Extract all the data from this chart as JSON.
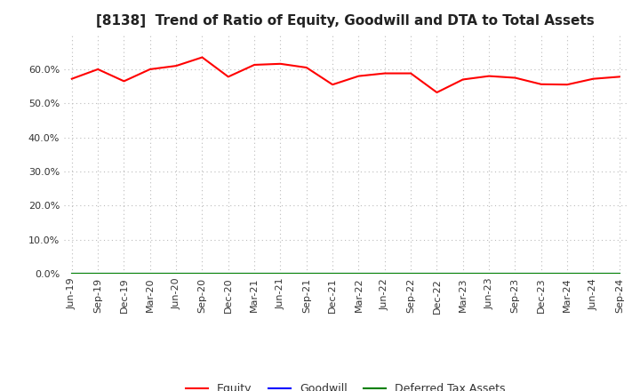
{
  "title": "[8138]  Trend of Ratio of Equity, Goodwill and DTA to Total Assets",
  "x_labels": [
    "Jun-19",
    "Sep-19",
    "Dec-19",
    "Mar-20",
    "Jun-20",
    "Sep-20",
    "Dec-20",
    "Mar-21",
    "Jun-21",
    "Sep-21",
    "Dec-21",
    "Mar-22",
    "Jun-22",
    "Sep-22",
    "Dec-22",
    "Mar-23",
    "Jun-23",
    "Sep-23",
    "Dec-23",
    "Mar-24",
    "Jun-24",
    "Sep-24"
  ],
  "equity": [
    0.572,
    0.6,
    0.565,
    0.6,
    0.61,
    0.635,
    0.578,
    0.613,
    0.616,
    0.605,
    0.555,
    0.58,
    0.588,
    0.588,
    0.532,
    0.57,
    0.58,
    0.575,
    0.556,
    0.555,
    0.572,
    0.578
  ],
  "goodwill": [
    0.0,
    0.0,
    0.0,
    0.0,
    0.0,
    0.0,
    0.0,
    0.0,
    0.0,
    0.0,
    0.0,
    0.0,
    0.0,
    0.0,
    0.0,
    0.0,
    0.0,
    0.0,
    0.0,
    0.0,
    0.0,
    0.0
  ],
  "dta": [
    0.0,
    0.0,
    0.0,
    0.0,
    0.0,
    0.0,
    0.0,
    0.0,
    0.0,
    0.0,
    0.0,
    0.0,
    0.0,
    0.0,
    0.0,
    0.0,
    0.0,
    0.0,
    0.0,
    0.0,
    0.0,
    0.0
  ],
  "equity_color": "#FF0000",
  "goodwill_color": "#0000FF",
  "dta_color": "#008000",
  "background_color": "#FFFFFF",
  "plot_bg_color": "#FFFFFF",
  "grid_color": "#BBBBBB",
  "ylim": [
    0.0,
    0.7
  ],
  "yticks": [
    0.0,
    0.1,
    0.2,
    0.3,
    0.4,
    0.5,
    0.6
  ],
  "title_fontsize": 11,
  "tick_fontsize": 8,
  "legend_fontsize": 9
}
